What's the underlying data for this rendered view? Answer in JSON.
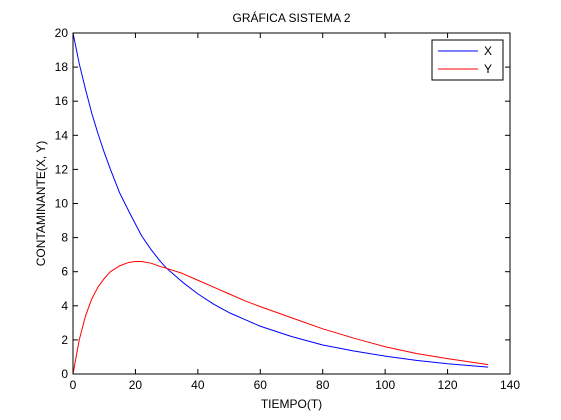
{
  "chart_data": {
    "type": "line",
    "title": "GRÁFICA SISTEMA 2",
    "xlabel": "TIEMPO(T)",
    "ylabel": "CONTAMINANTE(X, Y)",
    "xlim": [
      0,
      140
    ],
    "ylim": [
      0,
      20
    ],
    "xticks": [
      0,
      20,
      40,
      60,
      80,
      100,
      120,
      140
    ],
    "yticks": [
      0,
      2,
      4,
      6,
      8,
      10,
      12,
      14,
      16,
      18,
      20
    ],
    "grid": false,
    "legend_position": "top-right",
    "x": [
      0,
      2,
      4,
      6,
      8,
      10,
      12,
      15,
      18,
      20,
      22,
      25,
      28,
      30,
      35,
      40,
      45,
      50,
      55,
      60,
      70,
      80,
      90,
      100,
      110,
      120,
      133
    ],
    "series": [
      {
        "name": "X",
        "color": "#0000ff",
        "values": [
          20.0,
          18.2,
          16.7,
          15.3,
          14.1,
          13.0,
          12.0,
          10.6,
          9.5,
          8.8,
          8.1,
          7.3,
          6.6,
          6.2,
          5.4,
          4.7,
          4.1,
          3.6,
          3.2,
          2.8,
          2.2,
          1.7,
          1.35,
          1.05,
          0.8,
          0.6,
          0.4
        ]
      },
      {
        "name": "Y",
        "color": "#ff0000",
        "values": [
          0.0,
          2.0,
          3.4,
          4.4,
          5.1,
          5.6,
          6.0,
          6.35,
          6.55,
          6.6,
          6.6,
          6.5,
          6.3,
          6.2,
          5.9,
          5.5,
          5.1,
          4.7,
          4.3,
          3.95,
          3.3,
          2.65,
          2.1,
          1.6,
          1.2,
          0.9,
          0.55
        ]
      }
    ]
  }
}
